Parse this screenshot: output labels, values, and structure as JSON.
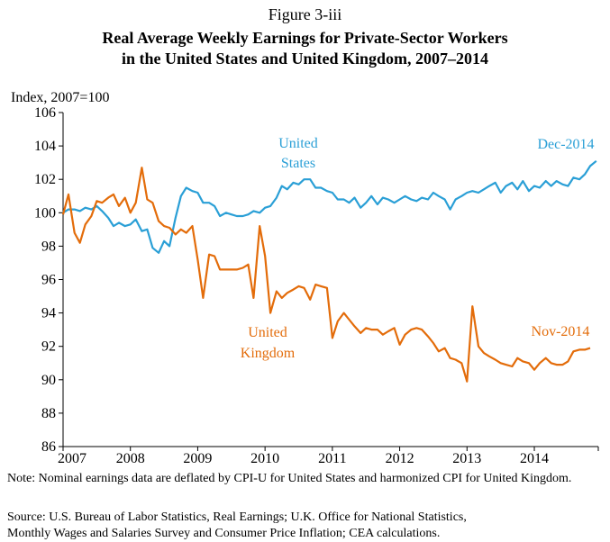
{
  "figure_label": "Figure 3-iii",
  "chart_data": {
    "type": "line",
    "title": "Real Average Weekly Earnings for Private-Sector Workers",
    "subtitle": "in the United States and United Kingdom, 2007–2014",
    "ylabel": "Index, 2007=100",
    "xlabel": "",
    "ylim": [
      86,
      106
    ],
    "xlim": [
      2007.0,
      2014.95
    ],
    "y_ticks": [
      "86",
      "88",
      "90",
      "92",
      "94",
      "96",
      "98",
      "100",
      "102",
      "104",
      "106"
    ],
    "x_ticks": [
      "2007",
      "2008",
      "2009",
      "2010",
      "2011",
      "2012",
      "2013",
      "2014"
    ],
    "grid": false,
    "colors": {
      "us": "#2a9fd6",
      "uk": "#e36c0a"
    },
    "series": [
      {
        "name": "United States",
        "label_lines": [
          "United",
          "States"
        ],
        "end_label": "Dec-2014",
        "x": [
          2007.0,
          2007.08,
          2007.17,
          2007.25,
          2007.33,
          2007.42,
          2007.5,
          2007.58,
          2007.67,
          2007.75,
          2007.83,
          2007.92,
          2008.0,
          2008.08,
          2008.17,
          2008.25,
          2008.33,
          2008.42,
          2008.5,
          2008.58,
          2008.67,
          2008.75,
          2008.83,
          2008.92,
          2009.0,
          2009.08,
          2009.17,
          2009.25,
          2009.33,
          2009.42,
          2009.5,
          2009.58,
          2009.67,
          2009.75,
          2009.83,
          2009.92,
          2010.0,
          2010.08,
          2010.17,
          2010.25,
          2010.33,
          2010.42,
          2010.5,
          2010.58,
          2010.67,
          2010.75,
          2010.83,
          2010.92,
          2011.0,
          2011.08,
          2011.17,
          2011.25,
          2011.33,
          2011.42,
          2011.5,
          2011.58,
          2011.67,
          2011.75,
          2011.83,
          2011.92,
          2012.0,
          2012.08,
          2012.17,
          2012.25,
          2012.33,
          2012.42,
          2012.5,
          2012.58,
          2012.67,
          2012.75,
          2012.83,
          2012.92,
          2013.0,
          2013.08,
          2013.17,
          2013.25,
          2013.33,
          2013.42,
          2013.5,
          2013.58,
          2013.67,
          2013.75,
          2013.83,
          2013.92,
          2014.0,
          2014.08,
          2014.17,
          2014.25,
          2014.33,
          2014.42,
          2014.5,
          2014.58,
          2014.67,
          2014.75,
          2014.83,
          2014.92
        ],
        "values": [
          100.0,
          100.2,
          100.2,
          100.1,
          100.3,
          100.2,
          100.4,
          100.1,
          99.7,
          99.2,
          99.4,
          99.2,
          99.3,
          99.6,
          98.9,
          99.0,
          97.9,
          97.6,
          98.3,
          98.0,
          99.7,
          101.0,
          101.5,
          101.3,
          101.2,
          100.6,
          100.6,
          100.4,
          99.8,
          100.0,
          99.9,
          99.8,
          99.8,
          99.9,
          100.1,
          100.0,
          100.3,
          100.4,
          100.9,
          101.6,
          101.4,
          101.8,
          101.7,
          102.0,
          102.0,
          101.5,
          101.5,
          101.3,
          101.2,
          100.8,
          100.8,
          100.6,
          100.9,
          100.3,
          100.6,
          101.0,
          100.5,
          100.9,
          100.8,
          100.6,
          100.8,
          101.0,
          100.8,
          100.7,
          100.9,
          100.8,
          101.2,
          101.0,
          100.8,
          100.2,
          100.8,
          101.0,
          101.2,
          101.3,
          101.2,
          101.4,
          101.6,
          101.8,
          101.2,
          101.6,
          101.8,
          101.4,
          101.9,
          101.3,
          101.6,
          101.5,
          101.9,
          101.6,
          101.9,
          101.7,
          101.6,
          102.1,
          102.0,
          102.3,
          102.8,
          103.1
        ]
      },
      {
        "name": "United Kingdom",
        "label_lines": [
          "United",
          "Kingdom"
        ],
        "end_label": "Nov-2014",
        "x": [
          2007.0,
          2007.08,
          2007.17,
          2007.25,
          2007.33,
          2007.42,
          2007.5,
          2007.58,
          2007.67,
          2007.75,
          2007.83,
          2007.92,
          2008.0,
          2008.08,
          2008.17,
          2008.25,
          2008.33,
          2008.42,
          2008.5,
          2008.58,
          2008.67,
          2008.75,
          2008.83,
          2008.92,
          2009.0,
          2009.08,
          2009.17,
          2009.25,
          2009.33,
          2009.42,
          2009.5,
          2009.58,
          2009.67,
          2009.75,
          2009.83,
          2009.92,
          2010.0,
          2010.08,
          2010.17,
          2010.25,
          2010.33,
          2010.42,
          2010.5,
          2010.58,
          2010.67,
          2010.75,
          2010.83,
          2010.92,
          2011.0,
          2011.08,
          2011.17,
          2011.25,
          2011.33,
          2011.42,
          2011.5,
          2011.58,
          2011.67,
          2011.75,
          2011.83,
          2011.92,
          2012.0,
          2012.08,
          2012.17,
          2012.25,
          2012.33,
          2012.42,
          2012.5,
          2012.58,
          2012.67,
          2012.75,
          2012.83,
          2012.92,
          2013.0,
          2013.08,
          2013.17,
          2013.25,
          2013.33,
          2013.42,
          2013.5,
          2013.58,
          2013.67,
          2013.75,
          2013.83,
          2013.92,
          2014.0,
          2014.08,
          2014.17,
          2014.25,
          2014.33,
          2014.42,
          2014.5,
          2014.58,
          2014.67,
          2014.75,
          2014.83
        ],
        "values": [
          99.9,
          101.1,
          98.8,
          98.2,
          99.3,
          99.8,
          100.7,
          100.6,
          100.9,
          101.1,
          100.4,
          100.9,
          100.0,
          100.6,
          102.7,
          100.8,
          100.6,
          99.5,
          99.2,
          99.1,
          98.7,
          99.0,
          98.8,
          99.2,
          97.2,
          94.9,
          97.5,
          97.4,
          96.6,
          96.6,
          96.6,
          96.6,
          96.7,
          96.9,
          94.9,
          99.2,
          97.4,
          94.0,
          95.3,
          94.9,
          95.2,
          95.4,
          95.6,
          95.5,
          94.8,
          95.7,
          95.6,
          95.5,
          92.5,
          93.5,
          94.0,
          93.6,
          93.2,
          92.8,
          93.1,
          93.0,
          93.0,
          92.7,
          92.9,
          93.1,
          92.1,
          92.7,
          93.0,
          93.1,
          93.0,
          92.6,
          92.2,
          91.7,
          91.9,
          91.3,
          91.2,
          91.0,
          89.9,
          94.4,
          92.0,
          91.6,
          91.4,
          91.2,
          91.0,
          90.9,
          90.8,
          91.3,
          91.1,
          91.0,
          90.6,
          91.0,
          91.3,
          91.0,
          90.9,
          90.9,
          91.1,
          91.7,
          91.8,
          91.8,
          91.9
        ]
      }
    ]
  },
  "note": "Note: Nominal earnings data are deflated by CPI-U for United States and harmonized CPI for United Kingdom.",
  "source": "Source: U.S. Bureau of Labor Statistics, Real Earnings; U.K. Office for National Statistics,",
  "source_cont": "Monthly Wages and Salaries Survey and Consumer Price Inflation; CEA calculations."
}
